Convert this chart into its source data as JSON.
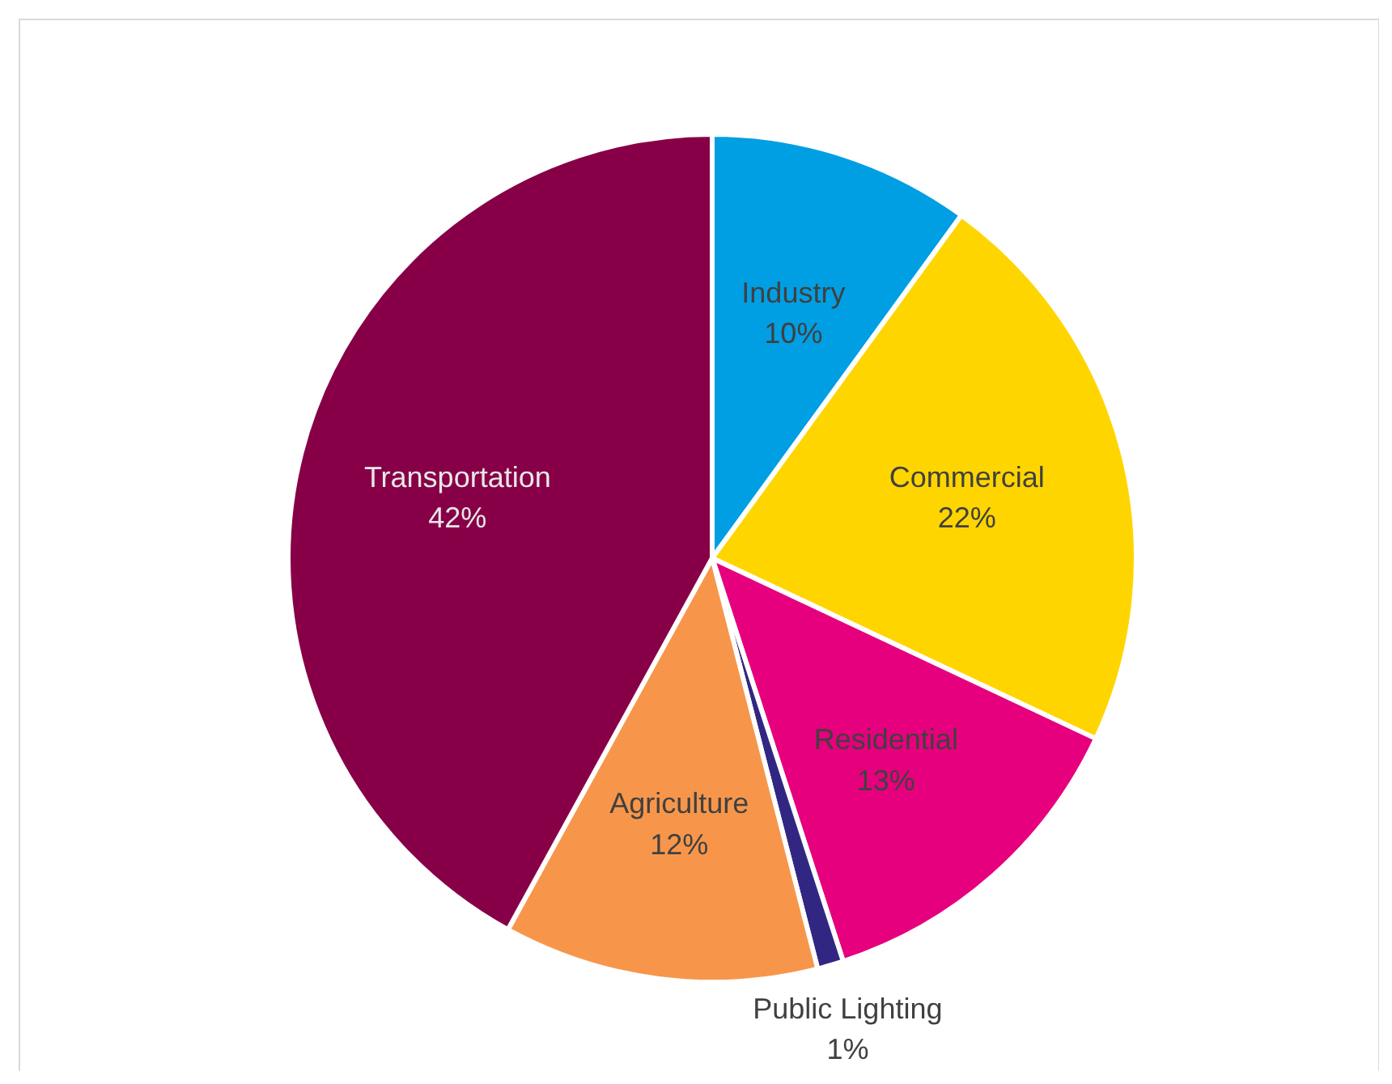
{
  "chart_data": {
    "type": "pie",
    "categories": [
      "Industry",
      "Commercial",
      "Residential",
      "Public Lighting",
      "Agriculture",
      "Transportation"
    ],
    "values": [
      10,
      22,
      13,
      1,
      12,
      42
    ],
    "value_labels": [
      "10%",
      "22%",
      "13%",
      "1%",
      "12%",
      "42%"
    ],
    "colors": [
      "#009fe3",
      "#ffd500",
      "#e6007e",
      "#312783",
      "#f7964a",
      "#870047"
    ]
  }
}
